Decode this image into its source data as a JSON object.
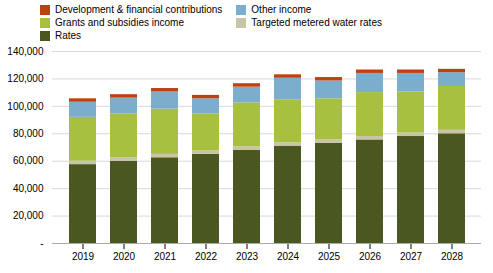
{
  "chart_data": {
    "type": "bar",
    "stacked": true,
    "categories": [
      "2019",
      "2020",
      "2021",
      "2022",
      "2023",
      "2024",
      "2025",
      "2026",
      "2027",
      "2028"
    ],
    "series": [
      {
        "name": "Rates",
        "color": "#4a5720",
        "values": [
          57500,
          60000,
          62500,
          65000,
          68000,
          71000,
          73000,
          75500,
          78000,
          80000
        ]
      },
      {
        "name": "Targeted metered water rates",
        "color": "#c8c4a8",
        "values": [
          2500,
          2500,
          2500,
          2500,
          2500,
          2500,
          2500,
          2500,
          2500,
          2500
        ]
      },
      {
        "name": "Grants and subsidies income",
        "color": "#a8c040",
        "values": [
          32000,
          32000,
          33000,
          27000,
          32000,
          31000,
          30000,
          32000,
          30000,
          32000
        ]
      },
      {
        "name": "Other income",
        "color": "#7aaecc",
        "values": [
          11000,
          11500,
          12500,
          11000,
          11500,
          16000,
          13000,
          14000,
          13500,
          10000
        ]
      },
      {
        "name": "Development & financial contributions",
        "color": "#bf4010",
        "values": [
          2500,
          2500,
          2500,
          2500,
          2500,
          2500,
          2500,
          2500,
          2500,
          2500
        ]
      }
    ],
    "ylim": [
      0,
      140000
    ],
    "yticks": [
      {
        "value": 0,
        "label": "-"
      },
      {
        "value": 20000,
        "label": "20,000"
      },
      {
        "value": 40000,
        "label": "40,000"
      },
      {
        "value": 60000,
        "label": "60,000"
      },
      {
        "value": 80000,
        "label": "80,000"
      },
      {
        "value": 100000,
        "label": "100,000"
      },
      {
        "value": 120000,
        "label": "120,000"
      },
      {
        "value": 140000,
        "label": "140,000"
      }
    ],
    "grid": true,
    "legend": "top"
  }
}
